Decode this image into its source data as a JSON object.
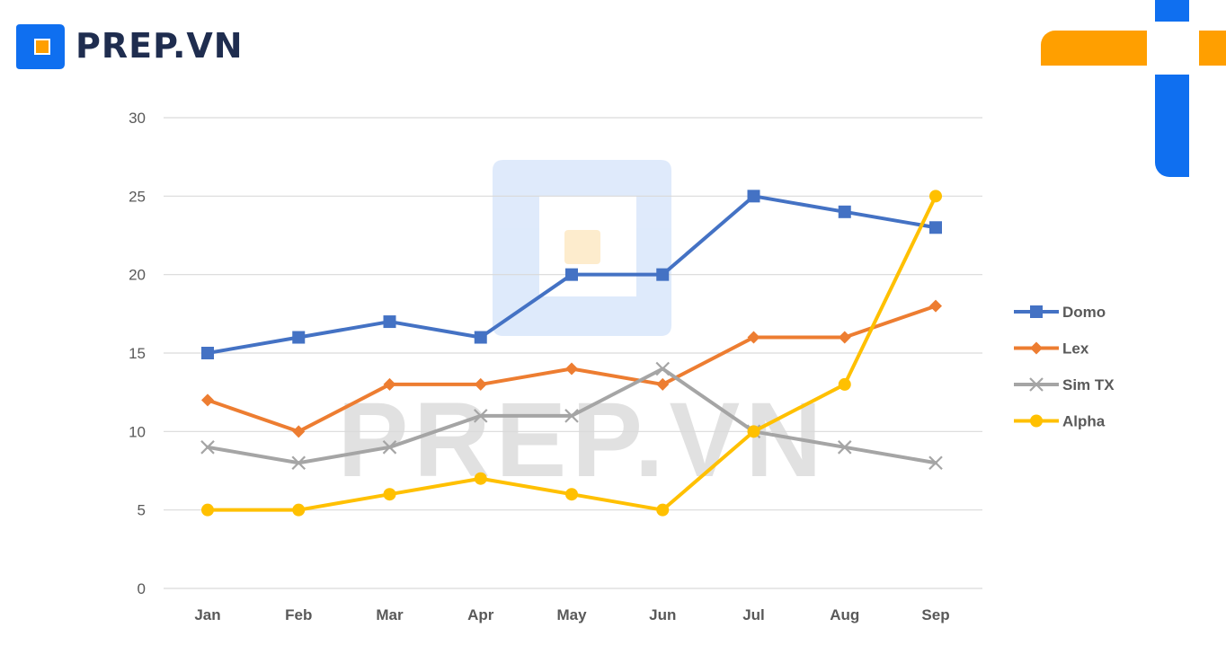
{
  "brand": {
    "name": "PREP.VN",
    "watermark": "PREP.VN"
  },
  "colors": {
    "brand_blue": "#0f6ff0",
    "brand_orange": "#ff9f00",
    "brand_text": "#1f2d4f"
  },
  "chart_data": {
    "type": "line",
    "title": "",
    "xlabel": "",
    "ylabel": "",
    "ylim": [
      0,
      30
    ],
    "yticks": [
      0,
      5,
      10,
      15,
      20,
      25,
      30
    ],
    "grid": true,
    "legend_position": "right",
    "categories": [
      "Jan",
      "Feb",
      "Mar",
      "Apr",
      "May",
      "Jun",
      "Jul",
      "Aug",
      "Sep"
    ],
    "series": [
      {
        "name": "Domo",
        "color": "#4472c4",
        "marker": "square",
        "values": [
          15,
          16,
          17,
          16,
          20,
          20,
          25,
          24,
          23
        ]
      },
      {
        "name": "Lex",
        "color": "#ed7d31",
        "marker": "diamond",
        "values": [
          12,
          10,
          13,
          13,
          14,
          13,
          16,
          16,
          18
        ]
      },
      {
        "name": "Sim TX",
        "color": "#a5a5a5",
        "marker": "x",
        "values": [
          9,
          8,
          9,
          11,
          11,
          14,
          10,
          9,
          8
        ]
      },
      {
        "name": "Alpha",
        "color": "#ffc000",
        "marker": "circle",
        "values": [
          5,
          5,
          6,
          7,
          6,
          5,
          10,
          13,
          25
        ]
      }
    ]
  }
}
